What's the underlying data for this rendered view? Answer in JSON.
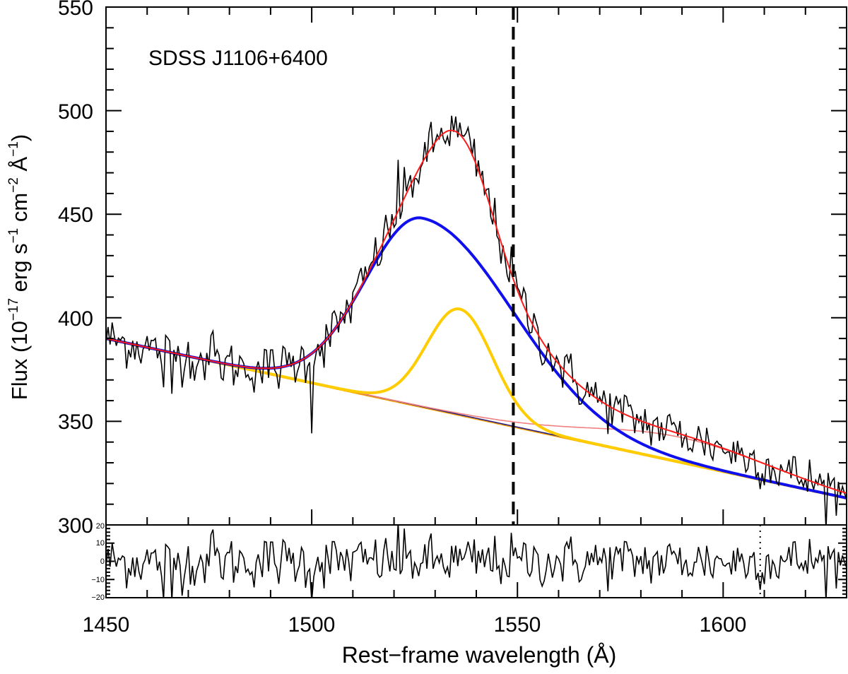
{
  "chart_data": {
    "type": "line",
    "annotation": "SDSS J1106+6400",
    "xlabel": "Rest−frame wavelength (Å)",
    "ylabel_parts": {
      "pre": "Flux (10",
      "exp1": "−17",
      "erg": " erg s",
      "exp2": "−1",
      "cm": " cm",
      "exp3": "−2",
      "ang": " Å",
      "exp4": "−1",
      "post": ")"
    },
    "xlim": [
      1450,
      1630
    ],
    "ylim": [
      300,
      550
    ],
    "x_ticks": [
      "1450",
      "1500",
      "1550",
      "1600"
    ],
    "y_ticks": [
      "300",
      "350",
      "400",
      "450",
      "500",
      "550"
    ],
    "vline_x": 1549,
    "continuum": {
      "x0": 1450,
      "y0": 390,
      "x1": 1630,
      "y1": 313
    },
    "broad_component": {
      "amplitude": 91,
      "center": 1527,
      "sigma_left": 14,
      "sigma_right": 22
    },
    "narrow_component": {
      "amplitude": 51,
      "center": 1536,
      "sigma": 8
    },
    "extra_component": {
      "amplitude": 12,
      "center": 1590,
      "sigma": 22
    },
    "noise_amplitude": 6,
    "residual_panel": {
      "ylim": [
        -20,
        20
      ],
      "y_ticks": [
        "20",
        "10",
        "0",
        "−10",
        "−20"
      ],
      "dotted_vline_x": 1609
    },
    "series": [
      {
        "name": "observed spectrum",
        "color": "#000000"
      },
      {
        "name": "total fit",
        "color": "#ff1a1a"
      },
      {
        "name": "broad component",
        "color": "#1010ee"
      },
      {
        "name": "narrow component",
        "color": "#ffcc00"
      },
      {
        "name": "continuum",
        "color": "#2a1a7a"
      },
      {
        "name": "continuum + extra",
        "color": "#f08080"
      }
    ]
  }
}
